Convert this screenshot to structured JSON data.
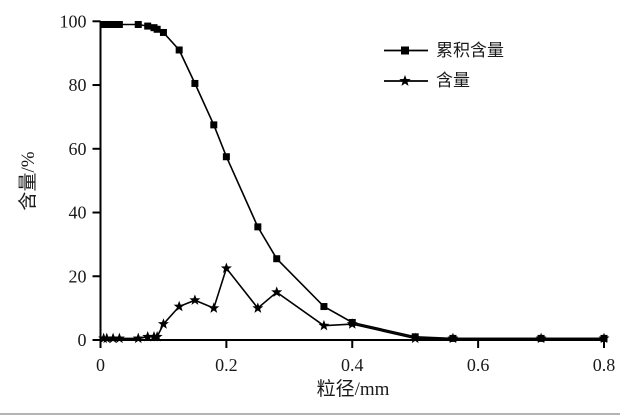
{
  "chart_data": {
    "type": "line",
    "title": "",
    "xlabel": "粒径/mm",
    "ylabel": "含量/%",
    "xlim": [
      0,
      0.8
    ],
    "ylim": [
      0,
      100
    ],
    "grid": false,
    "legend_position": "upper-right-inside",
    "line_color": "#000000",
    "background": "#ffffff",
    "xticks": [
      0,
      0.2,
      0.4,
      0.6,
      0.8
    ],
    "xtick_labels": [
      "0",
      "0.2",
      "0.4",
      "0.6",
      "0.8"
    ],
    "yticks": [
      0,
      20,
      40,
      60,
      80,
      100
    ],
    "ytick_labels": [
      "0",
      "20",
      "40",
      "60",
      "80",
      "100"
    ],
    "x": [
      0.005,
      0.01,
      0.02,
      0.03,
      0.06,
      0.075,
      0.085,
      0.09,
      0.1,
      0.125,
      0.15,
      0.18,
      0.2,
      0.25,
      0.28,
      0.355,
      0.4,
      0.5,
      0.56,
      0.7,
      0.8
    ],
    "series": [
      {
        "key": "cumulative-content",
        "name": "累积含量",
        "marker": "square",
        "values": [
          99,
          99,
          99,
          99,
          99,
          98.5,
          98,
          97.5,
          96.5,
          91,
          80.5,
          67.5,
          57.5,
          35.5,
          25.5,
          10.5,
          5.5,
          1,
          0.5,
          0.5,
          0.5
        ]
      },
      {
        "key": "content",
        "name": "含量",
        "marker": "star",
        "values": [
          0.5,
          0.5,
          0.5,
          0.5,
          0.5,
          1,
          1,
          1,
          5,
          10.5,
          12.5,
          10,
          22.5,
          10,
          15,
          4.5,
          5,
          0.5,
          0.5,
          0.5,
          0.5
        ]
      }
    ]
  }
}
